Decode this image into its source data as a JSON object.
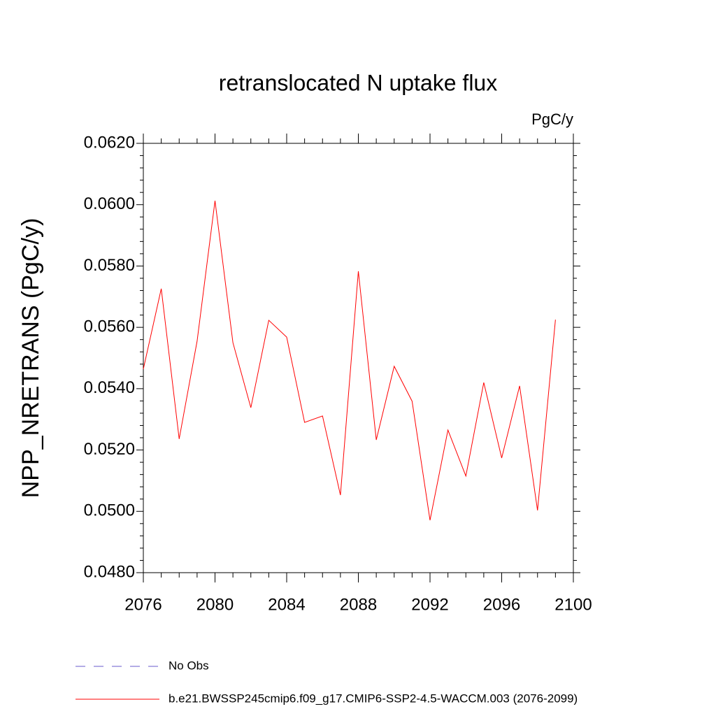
{
  "chart_data": {
    "type": "line",
    "title": "retranslocated N uptake flux",
    "units": "PgC/y",
    "y_label": "NPP_NRETRANS  (PgC/y)",
    "x": [
      2076,
      2077,
      2078,
      2079,
      2080,
      2081,
      2082,
      2083,
      2084,
      2085,
      2086,
      2087,
      2088,
      2089,
      2090,
      2091,
      2092,
      2093,
      2094,
      2095,
      2096,
      2097,
      2098,
      2099
    ],
    "series": [
      {
        "name": "b.e21.BWSSP245cmip6.f09_g17.CMIP6-SSP2-4.5-WACCM.003 (2076-2099)",
        "color": "#ff0000",
        "values": [
          0.05464,
          0.05726,
          0.05236,
          0.05555,
          0.06013,
          0.0555,
          0.05338,
          0.05623,
          0.05568,
          0.0529,
          0.05311,
          0.05053,
          0.05783,
          0.05233,
          0.05473,
          0.05359,
          0.04971,
          0.05265,
          0.05115,
          0.0542,
          0.05174,
          0.05409,
          0.05003,
          0.05625
        ]
      }
    ],
    "reference_legend": [
      {
        "name": "No Obs",
        "color": "#6a5acd",
        "dashed": true
      }
    ],
    "xlim": [
      2076,
      2100
    ],
    "xticks": [
      2076,
      2080,
      2084,
      2088,
      2092,
      2096,
      2100
    ],
    "ylim": [
      0.048,
      0.062
    ],
    "yticks": [
      {
        "value": 0.048,
        "label": "0.0480"
      },
      {
        "value": 0.05,
        "label": "0.0500"
      },
      {
        "value": 0.052,
        "label": "0.0520"
      },
      {
        "value": 0.054,
        "label": "0.0540"
      },
      {
        "value": 0.056,
        "label": "0.0560"
      },
      {
        "value": 0.058,
        "label": "0.0580"
      },
      {
        "value": 0.06,
        "label": "0.0600"
      },
      {
        "value": 0.062,
        "label": "0.0620"
      }
    ],
    "grid": false
  }
}
